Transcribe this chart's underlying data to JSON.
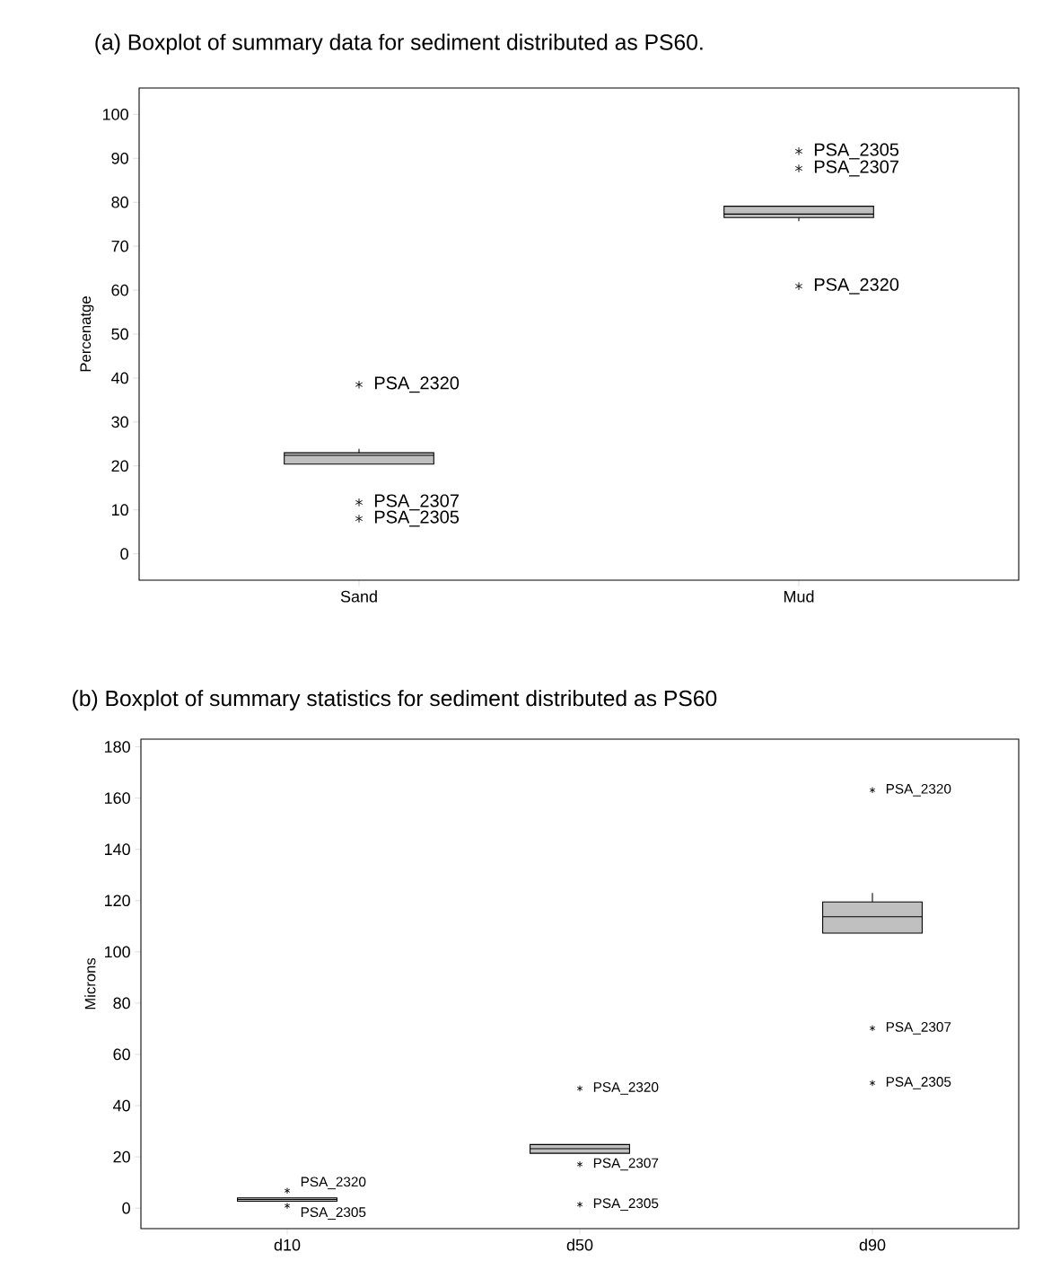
{
  "chart_data": [
    {
      "type": "box",
      "title": "(a)  Boxplot of summary data for sediment distributed as PS60.",
      "ylabel": "Percenatge",
      "categories": [
        "Sand",
        "Mud"
      ],
      "color": "#c0c0c0",
      "marker": "star",
      "boxes": [
        {
          "low": 20.4,
          "q1": 20.4,
          "median": 22.4,
          "q3": 23.0,
          "high": 23.9,
          "outliers": [
            38.5,
            11.7,
            8.0
          ]
        },
        {
          "low": 75.7,
          "q1": 76.5,
          "median": 77.3,
          "q3": 79.1,
          "high": 79.1,
          "outliers": [
            91.6,
            87.7,
            60.9
          ]
        }
      ],
      "ylim": [
        -6,
        106
      ],
      "yticks": [
        0,
        10,
        20,
        30,
        40,
        50,
        60,
        70,
        80,
        90,
        100
      ],
      "annotations": [
        "PSA_2320",
        "PSA_2307",
        "PSA_2305",
        "PSA_2305",
        "PSA_2307",
        "PSA_2320"
      ]
    },
    {
      "type": "box",
      "title": "(b)  Boxplot of summary statistics for sediment distributed as PS60",
      "ylabel": "Microns",
      "categories": [
        "d10",
        "d50",
        "d90"
      ],
      "color": "#c0c0c0",
      "marker": "star",
      "boxes": [
        {
          "low": 2.7,
          "q1": 2.7,
          "median": 3.4,
          "q3": 4.0,
          "high": 4.0,
          "outliers": [
            6.8,
            0.9
          ]
        },
        {
          "low": 21.4,
          "q1": 21.4,
          "median": 23.2,
          "q3": 24.8,
          "high": 24.8,
          "outliers": [
            46.7,
            17.1,
            1.4
          ]
        },
        {
          "low": 107.3,
          "q1": 107.3,
          "median": 113.7,
          "q3": 119.5,
          "high": 123,
          "outliers": [
            163.1,
            70.2,
            48.8
          ]
        }
      ],
      "ylim": [
        -8,
        183
      ],
      "yticks": [
        0,
        20,
        40,
        60,
        80,
        100,
        120,
        140,
        160,
        180
      ],
      "annotations": [
        "PSA_2320",
        "PSA_2305",
        "PSA_2320",
        "PSA_2307",
        "PSA_2305",
        "PSA_2320",
        "PSA_2307",
        "PSA_2305"
      ]
    }
  ]
}
